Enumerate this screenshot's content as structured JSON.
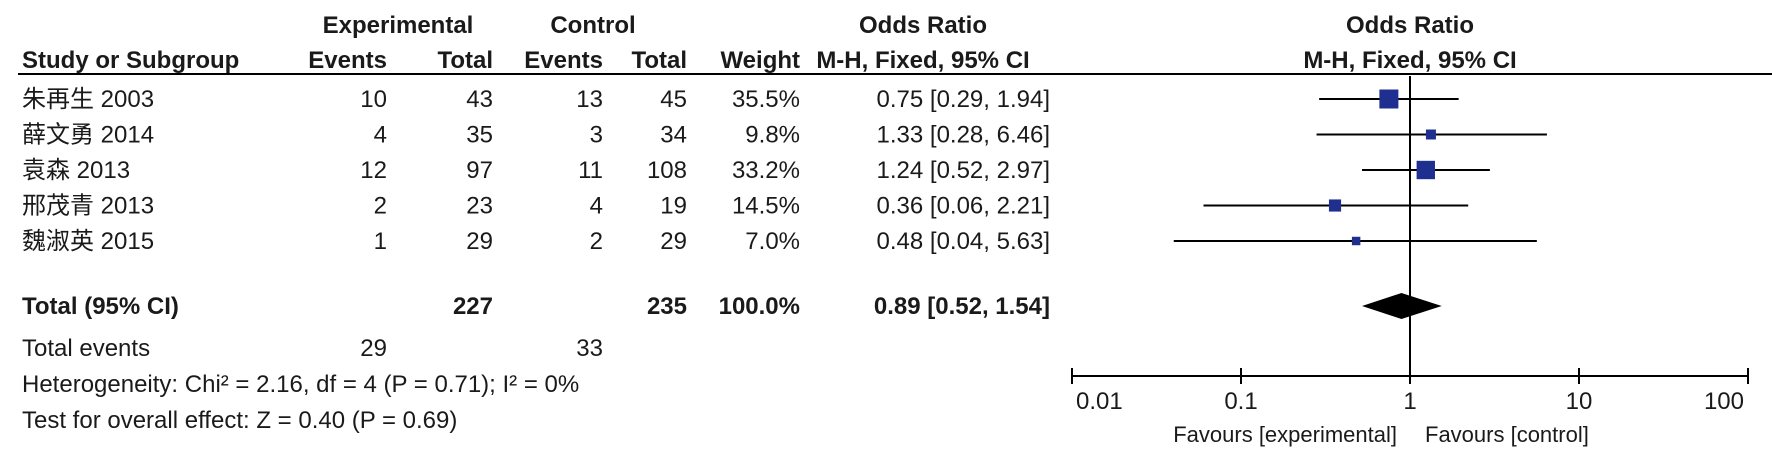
{
  "chart_data": {
    "type": "forest",
    "headers": {
      "group_experimental": "Experimental",
      "group_control": "Control",
      "or_col_title": "Odds Ratio",
      "or_col_method": "M-H, Fixed, 95% CI",
      "plot_title": "Odds Ratio",
      "plot_method": "M-H, Fixed, 95% CI",
      "study": "Study or Subgroup",
      "exp_events": "Events",
      "exp_total": "Total",
      "ctl_events": "Events",
      "ctl_total": "Total",
      "weight": "Weight"
    },
    "studies": [
      {
        "name": "朱再生 2003",
        "exp_events": "10",
        "exp_total": "43",
        "ctl_events": "13",
        "ctl_total": "45",
        "weight": "35.5%",
        "ci_text": "0.75 [0.29, 1.94]",
        "or": 0.75,
        "lo": 0.29,
        "hi": 1.94,
        "w": 35.5
      },
      {
        "name": "薛文勇 2014",
        "exp_events": "4",
        "exp_total": "35",
        "ctl_events": "3",
        "ctl_total": "34",
        "weight": "9.8%",
        "ci_text": "1.33 [0.28, 6.46]",
        "or": 1.33,
        "lo": 0.28,
        "hi": 6.46,
        "w": 9.8
      },
      {
        "name": "袁森 2013",
        "exp_events": "12",
        "exp_total": "97",
        "ctl_events": "11",
        "ctl_total": "108",
        "weight": "33.2%",
        "ci_text": "1.24 [0.52, 2.97]",
        "or": 1.24,
        "lo": 0.52,
        "hi": 2.97,
        "w": 33.2
      },
      {
        "name": "邢茂青 2013",
        "exp_events": "2",
        "exp_total": "23",
        "ctl_events": "4",
        "ctl_total": "19",
        "weight": "14.5%",
        "ci_text": "0.36 [0.06, 2.21]",
        "or": 0.36,
        "lo": 0.06,
        "hi": 2.21,
        "w": 14.5
      },
      {
        "name": "魏淑英 2015",
        "exp_events": "1",
        "exp_total": "29",
        "ctl_events": "2",
        "ctl_total": "29",
        "weight": "7.0%",
        "ci_text": "0.48 [0.04, 5.63]",
        "or": 0.48,
        "lo": 0.04,
        "hi": 5.63,
        "w": 7.0
      }
    ],
    "total": {
      "label": "Total (95% CI)",
      "exp_total": "227",
      "ctl_total": "235",
      "weight": "100.0%",
      "ci_text": "0.89 [0.52, 1.54]",
      "or": 0.89,
      "lo": 0.52,
      "hi": 1.54
    },
    "total_events": {
      "label": "Total events",
      "exp": "29",
      "ctl": "33"
    },
    "heterogeneity": "Heterogeneity: Chi² = 2.16, df = 4 (P = 0.71); I² = 0%",
    "overall_effect": "Test for overall effect: Z = 0.40 (P = 0.69)",
    "x_axis": {
      "scale": "log",
      "range": [
        0.01,
        100
      ],
      "ticks": [
        0.01,
        0.1,
        1,
        10,
        100
      ],
      "tick_labels": [
        "0.01",
        "0.1",
        "1",
        "10",
        "100"
      ]
    },
    "favours_left": "Favours [experimental]",
    "favours_right": "Favours [control]",
    "colors": {
      "marker": "#1f2f8f",
      "diamond": "#000000",
      "line": "#000000",
      "text": "#1a1a1a"
    }
  }
}
